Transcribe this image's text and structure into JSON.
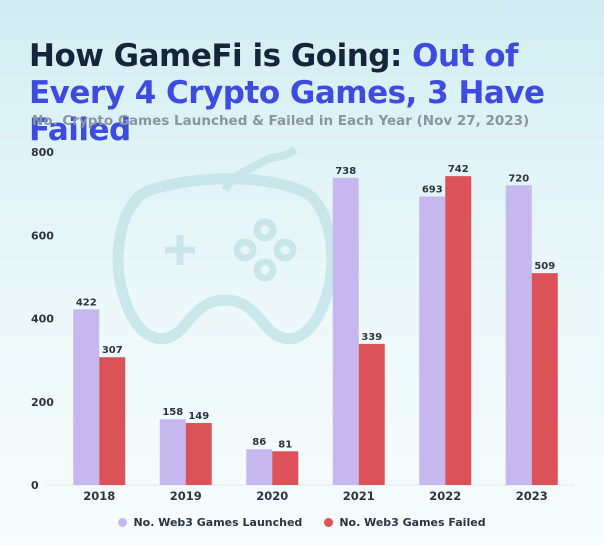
{
  "header": {
    "title_main": "How GameFi is Going: ",
    "title_accent": "Out of Every 4 Crypto Games, 3 Have Failed",
    "subtitle": "No. Crypto Games Launched & Failed in Each Year (Nov 27, 2023)"
  },
  "colors": {
    "launched": "#c6b8ee",
    "failed": "#db5358",
    "accent": "#3e4be0"
  },
  "chart_data": {
    "type": "bar",
    "title": "How GameFi is Going: Out of Every 4 Crypto Games, 3 Have Failed",
    "subtitle": "No. Crypto Games Launched & Failed in Each Year (Nov 27, 2023)",
    "xlabel": "",
    "ylabel": "",
    "ylim": [
      0,
      800
    ],
    "yticks": [
      0,
      200,
      400,
      600,
      800
    ],
    "grid": false,
    "legend_position": "bottom-center",
    "categories": [
      "2018",
      "2019",
      "2020",
      "2021",
      "2022",
      "2023"
    ],
    "series": [
      {
        "name": "No. Web3 Games Launched",
        "values": [
          422,
          158,
          86,
          738,
          693,
          720
        ]
      },
      {
        "name": "No. Web3 Games Failed",
        "values": [
          307,
          149,
          81,
          339,
          742,
          509
        ]
      }
    ]
  }
}
